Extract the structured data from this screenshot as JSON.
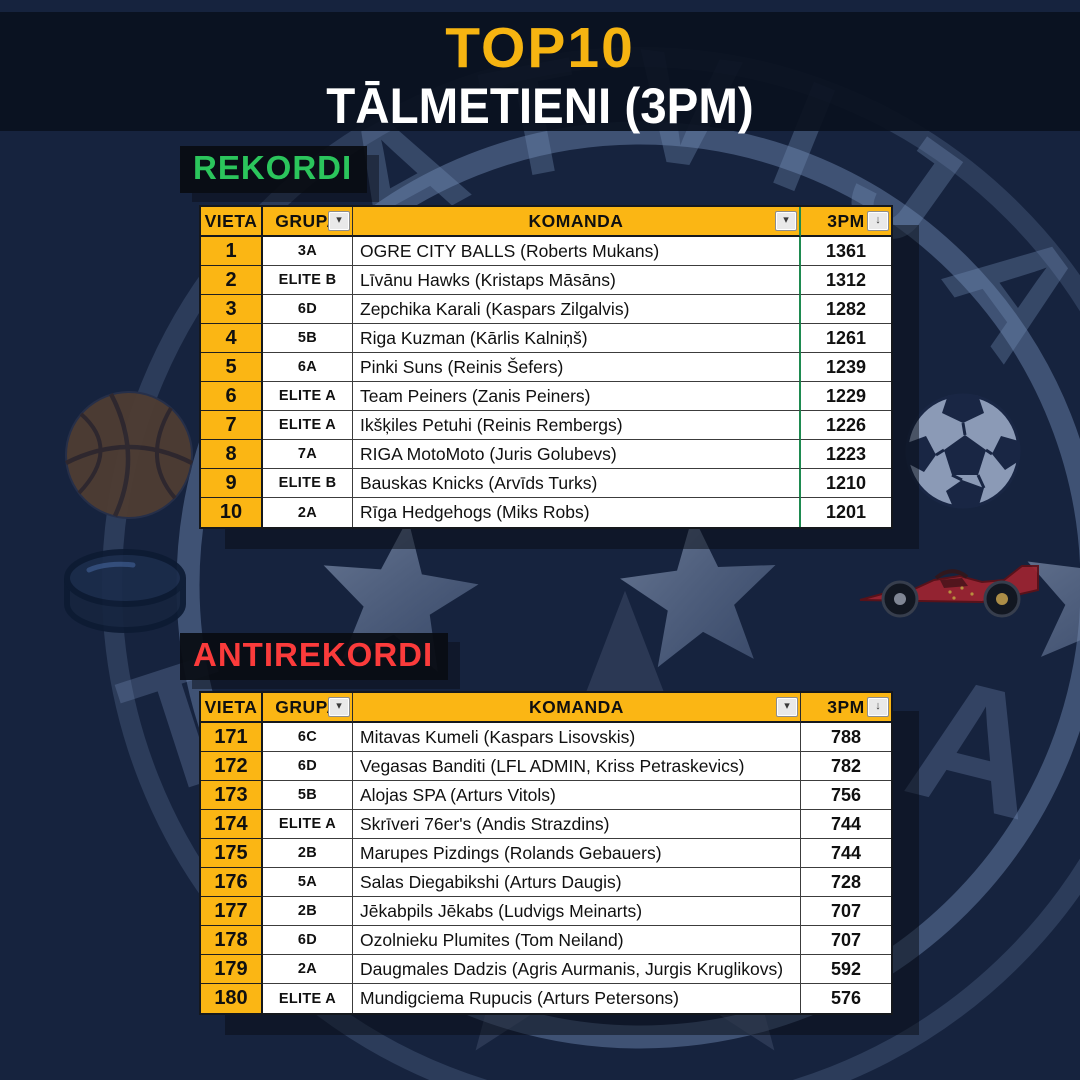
{
  "header": {
    "top10_label": "TOP10",
    "subtitle": "TĀLMETIENI (3PM)"
  },
  "watermark": {
    "text": "LATVIJA",
    "partial_left": "T",
    "partial_right": "A"
  },
  "colors": {
    "background_navy": "#16233E",
    "banner_dark": "#0A111F",
    "accent_gold": "#FBB614",
    "rekordi_green": "#2BC55C",
    "antirekordi_red": "#FB3B3B",
    "excel_print_border_green": "#1E8A50",
    "label_black": "#090C12"
  },
  "icons": {
    "filter_glyph": "▾",
    "sort_glyph": "↓",
    "background": [
      "basketball",
      "soccer-ball",
      "hockey-puck",
      "f1-race-car",
      "stars",
      "emblem-rings",
      "latvija-arc-text"
    ]
  },
  "columns": [
    {
      "key": "vieta",
      "label": "VIETA"
    },
    {
      "key": "grupa",
      "label": "GRUPA",
      "icon": "filter"
    },
    {
      "key": "komanda",
      "label": "KOMANDA",
      "icon": "filter"
    },
    {
      "key": "pm3",
      "label": "3PM",
      "icon": "sort"
    }
  ],
  "sections": [
    {
      "label": "REKORDI",
      "rows": [
        {
          "vieta": "1",
          "grupa": "3A",
          "komanda": "OGRE CITY BALLS  (Roberts Mukans)",
          "pm3": "1361"
        },
        {
          "vieta": "2",
          "grupa": "ELITE B",
          "komanda": "Līvānu Hawks  (Kristaps Māsāns)",
          "pm3": "1312"
        },
        {
          "vieta": "3",
          "grupa": "6D",
          "komanda": "Zepchika Karali  (Kaspars Zilgalvis)",
          "pm3": "1282"
        },
        {
          "vieta": "4",
          "grupa": "5B",
          "komanda": "Riga Kuzman  (Kārlis Kalniņš)",
          "pm3": "1261"
        },
        {
          "vieta": "5",
          "grupa": "6A",
          "komanda": "Pinki Suns  (Reinis Šefers)",
          "pm3": "1239"
        },
        {
          "vieta": "6",
          "grupa": "ELITE A",
          "komanda": "Team Peiners  (Zanis Peiners)",
          "pm3": "1229"
        },
        {
          "vieta": "7",
          "grupa": "ELITE A",
          "komanda": "Ikšķiles Petuhi  (Reinis Rembergs)",
          "pm3": "1226"
        },
        {
          "vieta": "8",
          "grupa": "7A",
          "komanda": "RIGA MotoMoto  (Juris Golubevs)",
          "pm3": "1223"
        },
        {
          "vieta": "9",
          "grupa": "ELITE B",
          "komanda": "Bauskas Knicks  (Arvīds Turks)",
          "pm3": "1210"
        },
        {
          "vieta": "10",
          "grupa": "2A",
          "komanda": "Rīga Hedgehogs  (Miks Robs)",
          "pm3": "1201"
        }
      ]
    },
    {
      "label": "ANTIREKORDI",
      "rows": [
        {
          "vieta": "171",
          "grupa": "6C",
          "komanda": "Mitavas Kumeli  (Kaspars Lisovskis)",
          "pm3": "788"
        },
        {
          "vieta": "172",
          "grupa": "6D",
          "komanda": "Vegasas Banditi  (LFL ADMIN, Kriss Petraskevics)",
          "pm3": "782"
        },
        {
          "vieta": "173",
          "grupa": "5B",
          "komanda": "Alojas SPA  (Arturs Vitols)",
          "pm3": "756"
        },
        {
          "vieta": "174",
          "grupa": "ELITE A",
          "komanda": "Skrīveri 76er's  (Andis Strazdins)",
          "pm3": "744"
        },
        {
          "vieta": "175",
          "grupa": "2B",
          "komanda": "Marupes Pizdings  (Rolands Gebauers)",
          "pm3": "744"
        },
        {
          "vieta": "176",
          "grupa": "5A",
          "komanda": "Salas Diegabikshi  (Arturs Daugis)",
          "pm3": "728"
        },
        {
          "vieta": "177",
          "grupa": "2B",
          "komanda": "Jēkabpils Jēkabs  (Ludvigs Meinarts)",
          "pm3": "707"
        },
        {
          "vieta": "178",
          "grupa": "6D",
          "komanda": "Ozolnieku Plumites  (Tom Neiland)",
          "pm3": "707"
        },
        {
          "vieta": "179",
          "grupa": "2A",
          "komanda": "Daugmales Dadzis  (Agris Aurmanis, Jurgis Kruglikovs)",
          "pm3": "592"
        },
        {
          "vieta": "180",
          "grupa": "ELITE A",
          "komanda": "Mundigciema Rupucis  (Arturs Petersons)",
          "pm3": "576"
        }
      ]
    }
  ]
}
